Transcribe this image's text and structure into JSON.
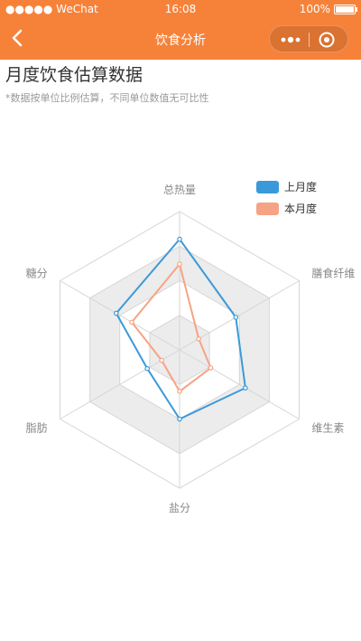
{
  "status_bar": {
    "carrier": "●●●●● WeChat",
    "time": "16:08",
    "battery": "100%"
  },
  "nav": {
    "title": "饮食分析"
  },
  "page": {
    "title": "月度饮食估算数据",
    "subtitle": "*数据按单位比例估算，不同单位数值无可比性"
  },
  "colors": {
    "header": "#f6823a",
    "series_last_month": "#3a9ad9",
    "series_this_month": "#f6a385"
  },
  "chart_data": {
    "type": "radar",
    "indicators": [
      "总热量",
      "膳食纤维",
      "维生素",
      "盐分",
      "脂肪",
      "糖分"
    ],
    "max": 100,
    "grid_levels": 4,
    "alternating_bands": true,
    "legend_position": "top-right",
    "series": [
      {
        "name": "上月度",
        "values": [
          80,
          47,
          55,
          50,
          27,
          53
        ]
      },
      {
        "name": "本月度",
        "values": [
          62,
          16,
          26,
          30,
          15,
          40
        ]
      }
    ]
  }
}
